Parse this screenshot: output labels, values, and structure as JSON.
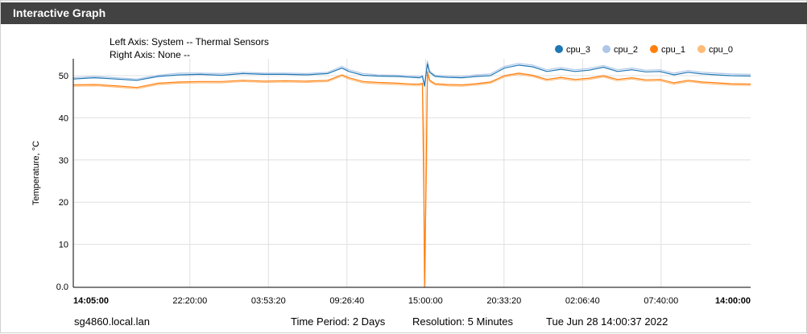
{
  "panel": {
    "title": "Interactive Graph"
  },
  "header_info": {
    "left_axis": "Left Axis: System -- Thermal Sensors",
    "right_axis": "Right Axis: None --"
  },
  "footer": {
    "host": "sg4860.local.lan",
    "time_period": "Time Period: 2 Days",
    "resolution": "Resolution: 5 Minutes",
    "timestamp": "Tue Jun 28 14:00:37 2022"
  },
  "colors": {
    "header_bg": "#424242",
    "cpu_3": "#1f77b4",
    "cpu_2": "#aec7e8",
    "cpu_1": "#ff7f0e",
    "cpu_0": "#ffbb78"
  },
  "chart_data": {
    "type": "line",
    "ylabel": "Temperature, °C",
    "ylim": [
      0,
      54
    ],
    "yticks": [
      0,
      10,
      20,
      30,
      40,
      50
    ],
    "ytick_labels": [
      "0.0",
      "10",
      "20",
      "30",
      "40",
      "50"
    ],
    "x_tick_labels": [
      "14:05:00",
      "22:20:00",
      "03:53:20",
      "09:26:40",
      "15:00:00",
      "20:33:20",
      "02:06:40",
      "07:40:00",
      "14:00:00"
    ],
    "x_tick_hours": [
      0,
      8.25,
      13.806,
      19.361,
      24.917,
      30.472,
      36.028,
      41.583,
      47.917
    ],
    "x_range_hours": [
      0,
      47.917
    ],
    "grid": true,
    "legend_position": "top-right",
    "series": [
      {
        "name": "cpu_3",
        "color": "#1f77b4",
        "x": [
          0,
          1.5,
          3,
          4.5,
          6,
          7.5,
          9,
          10.5,
          12,
          13.5,
          15,
          16.5,
          18,
          19,
          19.5,
          20.5,
          21.5,
          23,
          24,
          24.5,
          24.7,
          24.85,
          25.05,
          25.2,
          25.4,
          25.6,
          26.5,
          27.5,
          28.5,
          29.5,
          30.5,
          31.5,
          32.5,
          33.5,
          34.5,
          35.5,
          36.5,
          37.5,
          38.5,
          39.5,
          40.5,
          41.5,
          42.5,
          43.5,
          44.5,
          45.5,
          46.5,
          47.917
        ],
        "values": [
          49.2,
          49.5,
          49.2,
          48.9,
          49.8,
          50.2,
          50.3,
          50.1,
          50.5,
          50.3,
          50.3,
          50.2,
          50.5,
          51.8,
          51.0,
          50.1,
          49.9,
          49.8,
          49.6,
          49.5,
          49.8,
          47.5,
          52.8,
          50.8,
          50.3,
          49.8,
          49.6,
          49.5,
          49.8,
          50.0,
          51.8,
          52.5,
          52.1,
          51.0,
          51.5,
          51.0,
          51.3,
          52.0,
          51.0,
          51.4,
          50.9,
          51.0,
          50.2,
          50.8,
          50.4,
          50.2,
          50.0,
          49.9
        ]
      },
      {
        "name": "cpu_2",
        "color": "#aec7e8",
        "x": [
          0,
          1.5,
          3,
          4.5,
          6,
          7.5,
          9,
          10.5,
          12,
          13.5,
          15,
          16.5,
          18,
          19,
          19.5,
          20.5,
          21.5,
          23,
          24,
          24.5,
          24.7,
          24.85,
          25.05,
          25.2,
          25.4,
          25.6,
          26.5,
          27.5,
          28.5,
          29.5,
          30.5,
          31.5,
          32.5,
          33.5,
          34.5,
          35.5,
          36.5,
          37.5,
          38.5,
          39.5,
          40.5,
          41.5,
          42.5,
          43.5,
          44.5,
          45.5,
          46.5,
          47.917
        ],
        "values": [
          49.5,
          49.8,
          49.5,
          49.2,
          50.1,
          50.6,
          50.6,
          50.5,
          50.8,
          50.6,
          50.6,
          50.5,
          50.8,
          52.2,
          51.4,
          50.5,
          50.2,
          50.1,
          49.9,
          49.8,
          50.1,
          47.8,
          53.5,
          51.2,
          50.6,
          50.1,
          49.9,
          49.8,
          50.2,
          50.4,
          52.2,
          52.9,
          52.5,
          51.4,
          51.9,
          51.4,
          51.7,
          52.4,
          51.4,
          51.8,
          51.3,
          51.4,
          50.6,
          51.2,
          50.8,
          50.6,
          50.4,
          50.3
        ]
      },
      {
        "name": "cpu_1",
        "color": "#ff7f0e",
        "x": [
          0,
          1.5,
          3,
          4.5,
          6,
          7.5,
          9,
          10.5,
          12,
          13.5,
          15,
          16.5,
          18,
          19,
          19.5,
          20.5,
          21.5,
          23,
          24,
          24.5,
          24.7,
          24.8,
          24.85,
          24.9,
          25.0,
          25.05,
          25.2,
          25.4,
          25.6,
          26.5,
          27.5,
          28.5,
          29.5,
          30.5,
          31.5,
          32.5,
          33.5,
          34.5,
          35.5,
          36.5,
          37.5,
          38.5,
          39.5,
          40.5,
          41.5,
          42.5,
          43.5,
          44.5,
          45.5,
          46.5,
          47.917
        ],
        "values": [
          47.8,
          47.9,
          47.6,
          47.2,
          48.2,
          48.5,
          48.6,
          48.6,
          48.9,
          48.7,
          48.8,
          48.7,
          48.9,
          50.2,
          49.5,
          48.6,
          48.4,
          48.2,
          48.0,
          48.0,
          48.2,
          20.0,
          0.0,
          10.0,
          38.0,
          51.0,
          49.0,
          48.5,
          48.1,
          47.9,
          47.8,
          48.1,
          48.5,
          50.0,
          50.6,
          50.1,
          49.1,
          49.6,
          49.1,
          49.4,
          50.0,
          49.1,
          49.5,
          49.0,
          49.1,
          48.3,
          48.9,
          48.5,
          48.3,
          48.1,
          48.0
        ]
      },
      {
        "name": "cpu_0",
        "color": "#ffbb78",
        "x": [
          0,
          1.5,
          3,
          4.5,
          6,
          7.5,
          9,
          10.5,
          12,
          13.5,
          15,
          16.5,
          18,
          19,
          19.5,
          20.5,
          21.5,
          23,
          24,
          24.5,
          24.7,
          24.8,
          24.85,
          24.9,
          25.0,
          25.05,
          25.2,
          25.4,
          25.6,
          26.5,
          27.5,
          28.5,
          29.5,
          30.5,
          31.5,
          32.5,
          33.5,
          34.5,
          35.5,
          36.5,
          37.5,
          38.5,
          39.5,
          40.5,
          41.5,
          42.5,
          43.5,
          44.5,
          45.5,
          46.5,
          47.917
        ],
        "values": [
          47.5,
          47.6,
          47.3,
          46.9,
          47.9,
          48.2,
          48.3,
          48.3,
          48.6,
          48.4,
          48.5,
          48.4,
          48.6,
          49.9,
          49.2,
          48.3,
          48.1,
          47.9,
          47.7,
          47.7,
          47.9,
          36.0,
          0.0,
          12.0,
          30.0,
          50.5,
          48.6,
          48.2,
          47.8,
          47.6,
          47.5,
          47.8,
          48.2,
          49.7,
          50.3,
          49.8,
          48.8,
          49.3,
          48.8,
          49.1,
          49.7,
          48.8,
          49.2,
          48.7,
          48.8,
          48.0,
          48.6,
          48.2,
          48.0,
          47.8,
          47.7
        ]
      }
    ]
  }
}
